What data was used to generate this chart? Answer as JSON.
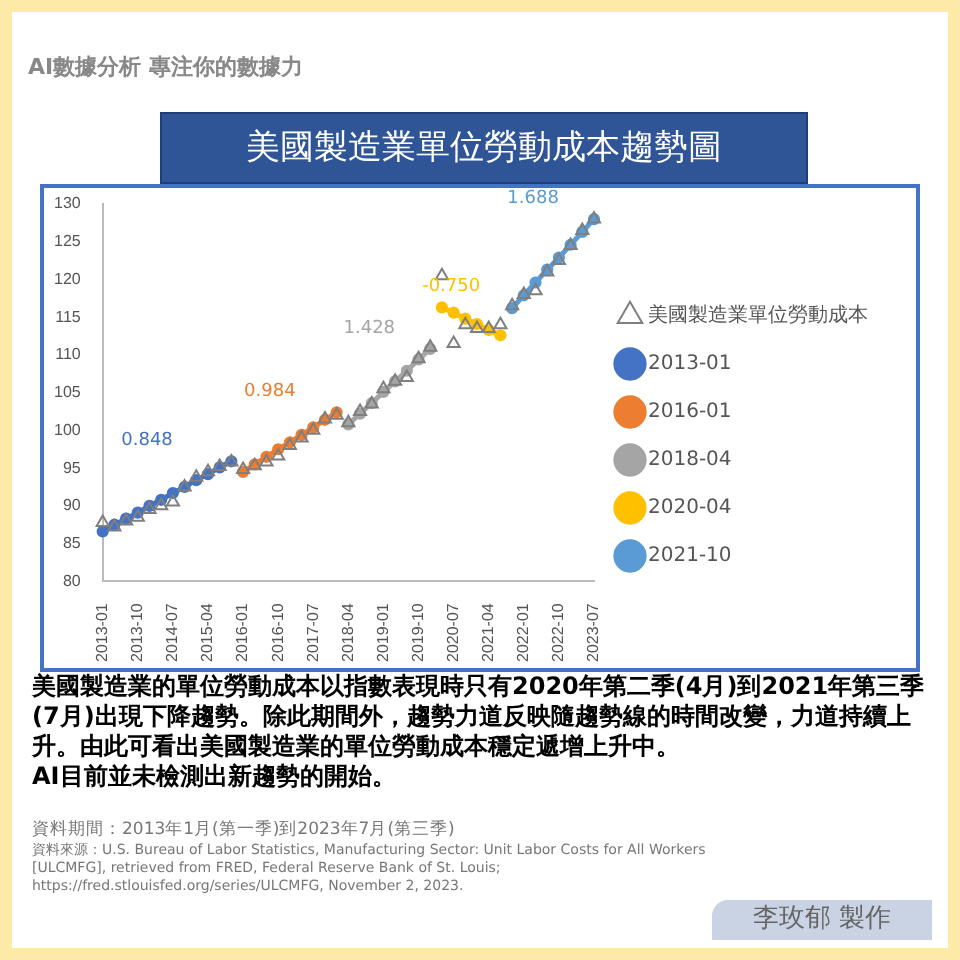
{
  "chart_data": {
    "type": "line",
    "title": "美國製造業單位勞動成本趨勢圖",
    "categories": [
      "2013-01",
      null,
      null,
      "2013-10",
      null,
      null,
      "2014-07",
      null,
      null,
      "2015-04",
      null,
      null,
      "2016-01",
      null,
      null,
      "2016-10",
      null,
      null,
      "2017-07",
      null,
      null,
      "2018-04",
      null,
      null,
      "2019-01",
      null,
      null,
      "2019-10",
      null,
      null,
      "2020-07",
      null,
      null,
      "2021-04",
      null,
      null,
      "2022-01",
      null,
      null,
      "2022-10",
      null,
      null,
      "2023-07"
    ],
    "ylim": [
      80,
      130
    ],
    "yticks": [
      80,
      85,
      90,
      95,
      100,
      105,
      110,
      115,
      120,
      125,
      130
    ],
    "grid": false,
    "legend": "right",
    "series": [
      {
        "name": "美國製造業單位勞動成本",
        "type": "scatter",
        "marker": "triangle",
        "color": "#7f7f7f",
        "values": [
          87.8,
          87.2,
          88.0,
          88.5,
          89.5,
          90.0,
          90.5,
          92.5,
          93.8,
          94.5,
          95.2,
          95.8,
          94.8,
          95.3,
          95.8,
          96.6,
          98.0,
          99.0,
          100.0,
          101.5,
          102.0,
          101.0,
          102.5,
          103.5,
          105.5,
          106.5,
          107.0,
          109.5,
          111.0,
          120.5,
          111.5,
          114.0,
          113.5,
          113.5,
          114.0,
          116.5,
          118.0,
          118.5,
          121.0,
          122.5,
          124.5,
          126.5,
          128.0
        ]
      },
      {
        "name": "2013-01",
        "type": "line",
        "marker": "circle",
        "color": "#4472c4",
        "values": [
          86.6,
          87.5,
          88.3,
          89.1,
          90.0,
          90.8,
          91.7,
          92.5,
          93.4,
          94.2,
          95.1,
          95.9,
          null,
          null,
          null,
          null,
          null,
          null,
          null,
          null,
          null,
          null,
          null,
          null,
          null,
          null,
          null,
          null,
          null,
          null,
          null,
          null,
          null,
          null,
          null,
          null,
          null,
          null,
          null,
          null,
          null,
          null,
          null
        ]
      },
      {
        "name": "2016-01",
        "type": "line",
        "marker": "circle",
        "color": "#ed7d31",
        "values": [
          null,
          null,
          null,
          null,
          null,
          null,
          null,
          null,
          null,
          null,
          null,
          null,
          94.5,
          95.5,
          96.5,
          97.5,
          98.4,
          99.4,
          100.4,
          101.4,
          102.4,
          null,
          null,
          null,
          null,
          null,
          null,
          null,
          null,
          null,
          null,
          null,
          null,
          null,
          null,
          null,
          null,
          null,
          null,
          null,
          null,
          null,
          null
        ]
      },
      {
        "name": "2018-04",
        "type": "line",
        "marker": "circle",
        "color": "#a5a5a5",
        "values": [
          null,
          null,
          null,
          null,
          null,
          null,
          null,
          null,
          null,
          null,
          null,
          null,
          null,
          null,
          null,
          null,
          null,
          null,
          null,
          null,
          null,
          100.8,
          102.2,
          103.6,
          105.1,
          106.5,
          107.9,
          109.4,
          110.8,
          null,
          null,
          null,
          null,
          null,
          null,
          null,
          null,
          null,
          null,
          null,
          null,
          null,
          null
        ]
      },
      {
        "name": "2020-04",
        "type": "line",
        "marker": "circle",
        "color": "#ffc000",
        "values": [
          null,
          null,
          null,
          null,
          null,
          null,
          null,
          null,
          null,
          null,
          null,
          null,
          null,
          null,
          null,
          null,
          null,
          null,
          null,
          null,
          null,
          null,
          null,
          null,
          null,
          null,
          null,
          null,
          null,
          116.3,
          115.6,
          114.8,
          114.1,
          113.3,
          112.6,
          null,
          null,
          null,
          null,
          null,
          null,
          null,
          null
        ]
      },
      {
        "name": "2021-10",
        "type": "line",
        "marker": "circle",
        "color": "#5b9bd5",
        "values": [
          null,
          null,
          null,
          null,
          null,
          null,
          null,
          null,
          null,
          null,
          null,
          null,
          null,
          null,
          null,
          null,
          null,
          null,
          null,
          null,
          null,
          null,
          null,
          null,
          null,
          null,
          null,
          null,
          null,
          null,
          null,
          null,
          null,
          null,
          null,
          116.2,
          117.9,
          119.6,
          121.3,
          122.9,
          124.6,
          126.3,
          128.0
        ]
      }
    ],
    "annotations": [
      "AI數據分析 專注你的數據力",
      "美國製造業的單位勞動成本以指數表現時只有2020年第二季(4月)到2021年第三季(7月)出現下降趨勢。除此期間外，趨勢力道反映隨趨勢線的時間改變，力道持續上升。由此可看出美國製造業的單位勞動成本穩定遞增上升中。",
      "AI目前並未檢測出新趨勢的開始。",
      "資料期間：2013年1月(第一季)到2023年7月(第三季)",
      "資料來源：U.S. Bureau of Labor Statistics, Manufacturing Sector: Unit Labor Costs for All Workers [ULCMFG], retrieved from FRED, Federal Reserve Bank of St. Louis; https://fred.stlouisfed.org/series/ULCMFG, November 2, 2023.",
      "李玫郁 製作",
      "0.848",
      "0.984",
      "1.428",
      "-0.750",
      "1.688"
    ]
  }
}
